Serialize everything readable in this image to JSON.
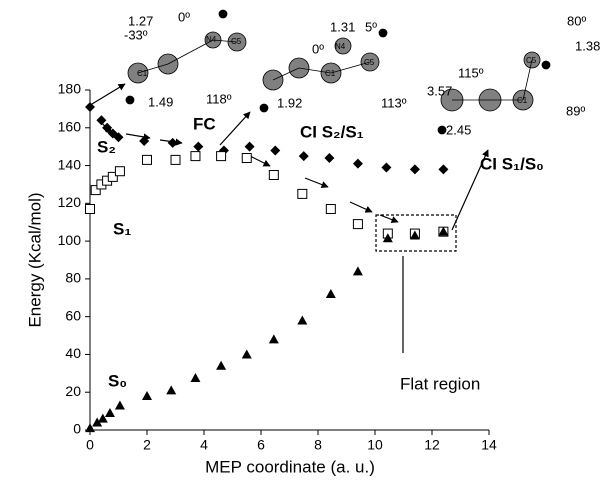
{
  "chart_data": {
    "type": "scatter",
    "xlabel": "MEP coordinate (a. u.)",
    "ylabel": "Energy (Kcal/mol)",
    "xlim": [
      0,
      14
    ],
    "xticks": [
      0,
      2,
      4,
      6,
      8,
      10,
      12,
      14
    ],
    "ylim": [
      0,
      180
    ],
    "yticks": [
      0,
      20,
      40,
      60,
      80,
      100,
      120,
      140,
      160,
      180
    ],
    "series": [
      {
        "name": "S₂",
        "marker": "diamond",
        "color": "#000000",
        "x": [
          0,
          0.4,
          0.6,
          0.8,
          1.0,
          1.9,
          2.9,
          3.8,
          4.7,
          5.6,
          6.5,
          7.5,
          8.4,
          9.4,
          10.4,
          11.4,
          12.4
        ],
        "values": [
          171,
          164,
          160,
          157,
          155,
          153,
          152,
          150,
          148,
          150,
          148,
          145,
          144,
          141,
          139,
          138,
          138
        ]
      },
      {
        "name": "S₁",
        "marker": "open-square",
        "color": "#000000",
        "x": [
          0,
          0.2,
          0.4,
          0.6,
          0.8,
          1.05,
          2.0,
          3.0,
          3.7,
          4.6,
          5.5,
          6.45,
          7.45,
          8.45,
          9.4,
          10.45,
          11.4,
          12.4
        ],
        "values": [
          117,
          127,
          130,
          132,
          134,
          137,
          143,
          143,
          145,
          145,
          144,
          135,
          125,
          117,
          109,
          104,
          104,
          105
        ]
      },
      {
        "name": "S₀",
        "marker": "triangle",
        "color": "#000000",
        "x": [
          0,
          0.25,
          0.45,
          0.7,
          1.05,
          2.0,
          2.85,
          3.7,
          4.6,
          5.5,
          6.45,
          7.45,
          8.45,
          9.4,
          10.45,
          11.4,
          12.4
        ],
        "values": [
          1,
          4,
          6,
          9,
          13,
          18,
          21,
          27.5,
          34,
          40,
          48,
          58,
          72,
          84,
          101.5,
          103,
          105
        ]
      }
    ],
    "annotations": [
      "FC",
      "CI S₂/S₁",
      "CI S₁/S₀",
      "Flat region",
      "1.27",
      "-33º",
      "0º",
      "1.49",
      "118º",
      "N4",
      "C5",
      "C1",
      "1.31",
      "5º",
      "0º",
      "1.92",
      "113º",
      "N4",
      "C5",
      "C1",
      "3.57",
      "115º",
      "80º",
      "1.38",
      "89º",
      "2.45",
      "C5",
      "C1"
    ]
  }
}
